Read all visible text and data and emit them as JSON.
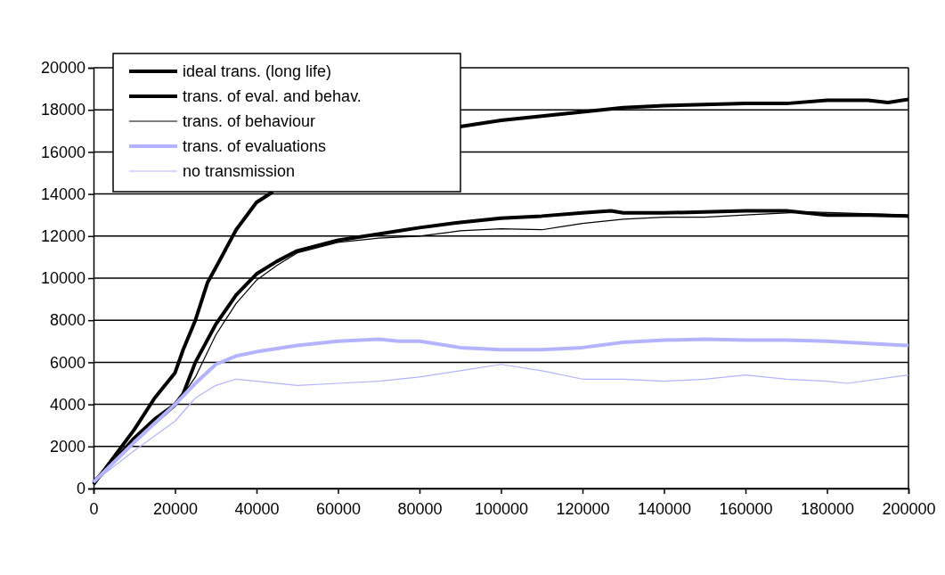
{
  "chart_data": {
    "type": "line",
    "xlim": [
      0,
      200000
    ],
    "ylim": [
      0,
      20000
    ],
    "xticks": [
      0,
      20000,
      40000,
      60000,
      80000,
      100000,
      120000,
      140000,
      160000,
      180000,
      200000
    ],
    "yticks": [
      0,
      2000,
      4000,
      6000,
      8000,
      10000,
      12000,
      14000,
      16000,
      18000,
      20000
    ],
    "grid": "y",
    "legend": "top left",
    "series": [
      {
        "name": "ideal trans. (long life)",
        "color": "#000000",
        "x": [
          0,
          5000,
          10000,
          15000,
          20000,
          22000,
          25000,
          28000,
          30000,
          35000,
          40000,
          44000,
          46000,
          88000,
          90000,
          100000,
          110000,
          120000,
          130000,
          140000,
          150000,
          160000,
          170000,
          180000,
          190000,
          195000,
          200000
        ],
        "values": [
          200,
          1500,
          2800,
          4300,
          5500,
          6600,
          8000,
          9800,
          10500,
          12300,
          13600,
          14100,
          null,
          null,
          17200,
          17500,
          17700,
          17900,
          18100,
          18200,
          18250,
          18300,
          18300,
          18450,
          18450,
          18350,
          18500
        ]
      },
      {
        "name": "trans. of eval. and behav.",
        "color": "#000000",
        "x": [
          0,
          5000,
          10000,
          15000,
          20000,
          22000,
          25000,
          30000,
          35000,
          40000,
          45000,
          50000,
          60000,
          70000,
          80000,
          90000,
          100000,
          110000,
          120000,
          127000,
          130000,
          140000,
          150000,
          160000,
          170000,
          180000,
          190000,
          200000
        ],
        "values": [
          300,
          1300,
          2400,
          3300,
          4000,
          4500,
          6000,
          7800,
          9200,
          10200,
          10800,
          11300,
          11800,
          12100,
          12400,
          12650,
          12850,
          12950,
          13100,
          13200,
          13100,
          13100,
          13150,
          13200,
          13200,
          13000,
          13000,
          12950
        ]
      },
      {
        "name": "trans. of behaviour",
        "color": "#000000",
        "x": [
          0,
          10000,
          20000,
          25000,
          30000,
          35000,
          40000,
          45000,
          50000,
          60000,
          70000,
          80000,
          90000,
          100000,
          110000,
          120000,
          130000,
          140000,
          150000,
          160000,
          170000,
          175000,
          200000
        ],
        "values": [
          200,
          2200,
          3900,
          5300,
          7300,
          8800,
          9900,
          10600,
          11200,
          11700,
          11900,
          12000,
          12250,
          12350,
          12300,
          12600,
          12800,
          12900,
          12900,
          13000,
          13100,
          13150,
          13000
        ]
      },
      {
        "name": "trans. of evaluations",
        "color": "#b3b3ff",
        "x": [
          0,
          10000,
          20000,
          25000,
          30000,
          35000,
          40000,
          50000,
          60000,
          70000,
          75000,
          80000,
          90000,
          100000,
          110000,
          120000,
          130000,
          140000,
          150000,
          160000,
          170000,
          180000,
          190000,
          200000
        ],
        "values": [
          300,
          2200,
          4000,
          5000,
          5900,
          6300,
          6500,
          6800,
          7000,
          7100,
          7000,
          7000,
          6700,
          6600,
          6600,
          6700,
          6950,
          7050,
          7100,
          7050,
          7050,
          7000,
          6900,
          6800
        ]
      },
      {
        "name": "no transmission",
        "color": "#b3b3ff",
        "x": [
          0,
          10000,
          20000,
          25000,
          30000,
          35000,
          40000,
          50000,
          60000,
          70000,
          80000,
          90000,
          100000,
          110000,
          120000,
          130000,
          140000,
          150000,
          160000,
          170000,
          180000,
          185000,
          200000
        ],
        "values": [
          300,
          1800,
          3200,
          4300,
          4900,
          5200,
          5100,
          4900,
          5000,
          5100,
          5300,
          5600,
          5900,
          5600,
          5200,
          5200,
          5100,
          5200,
          5400,
          5200,
          5100,
          5000,
          5400
        ]
      }
    ]
  }
}
